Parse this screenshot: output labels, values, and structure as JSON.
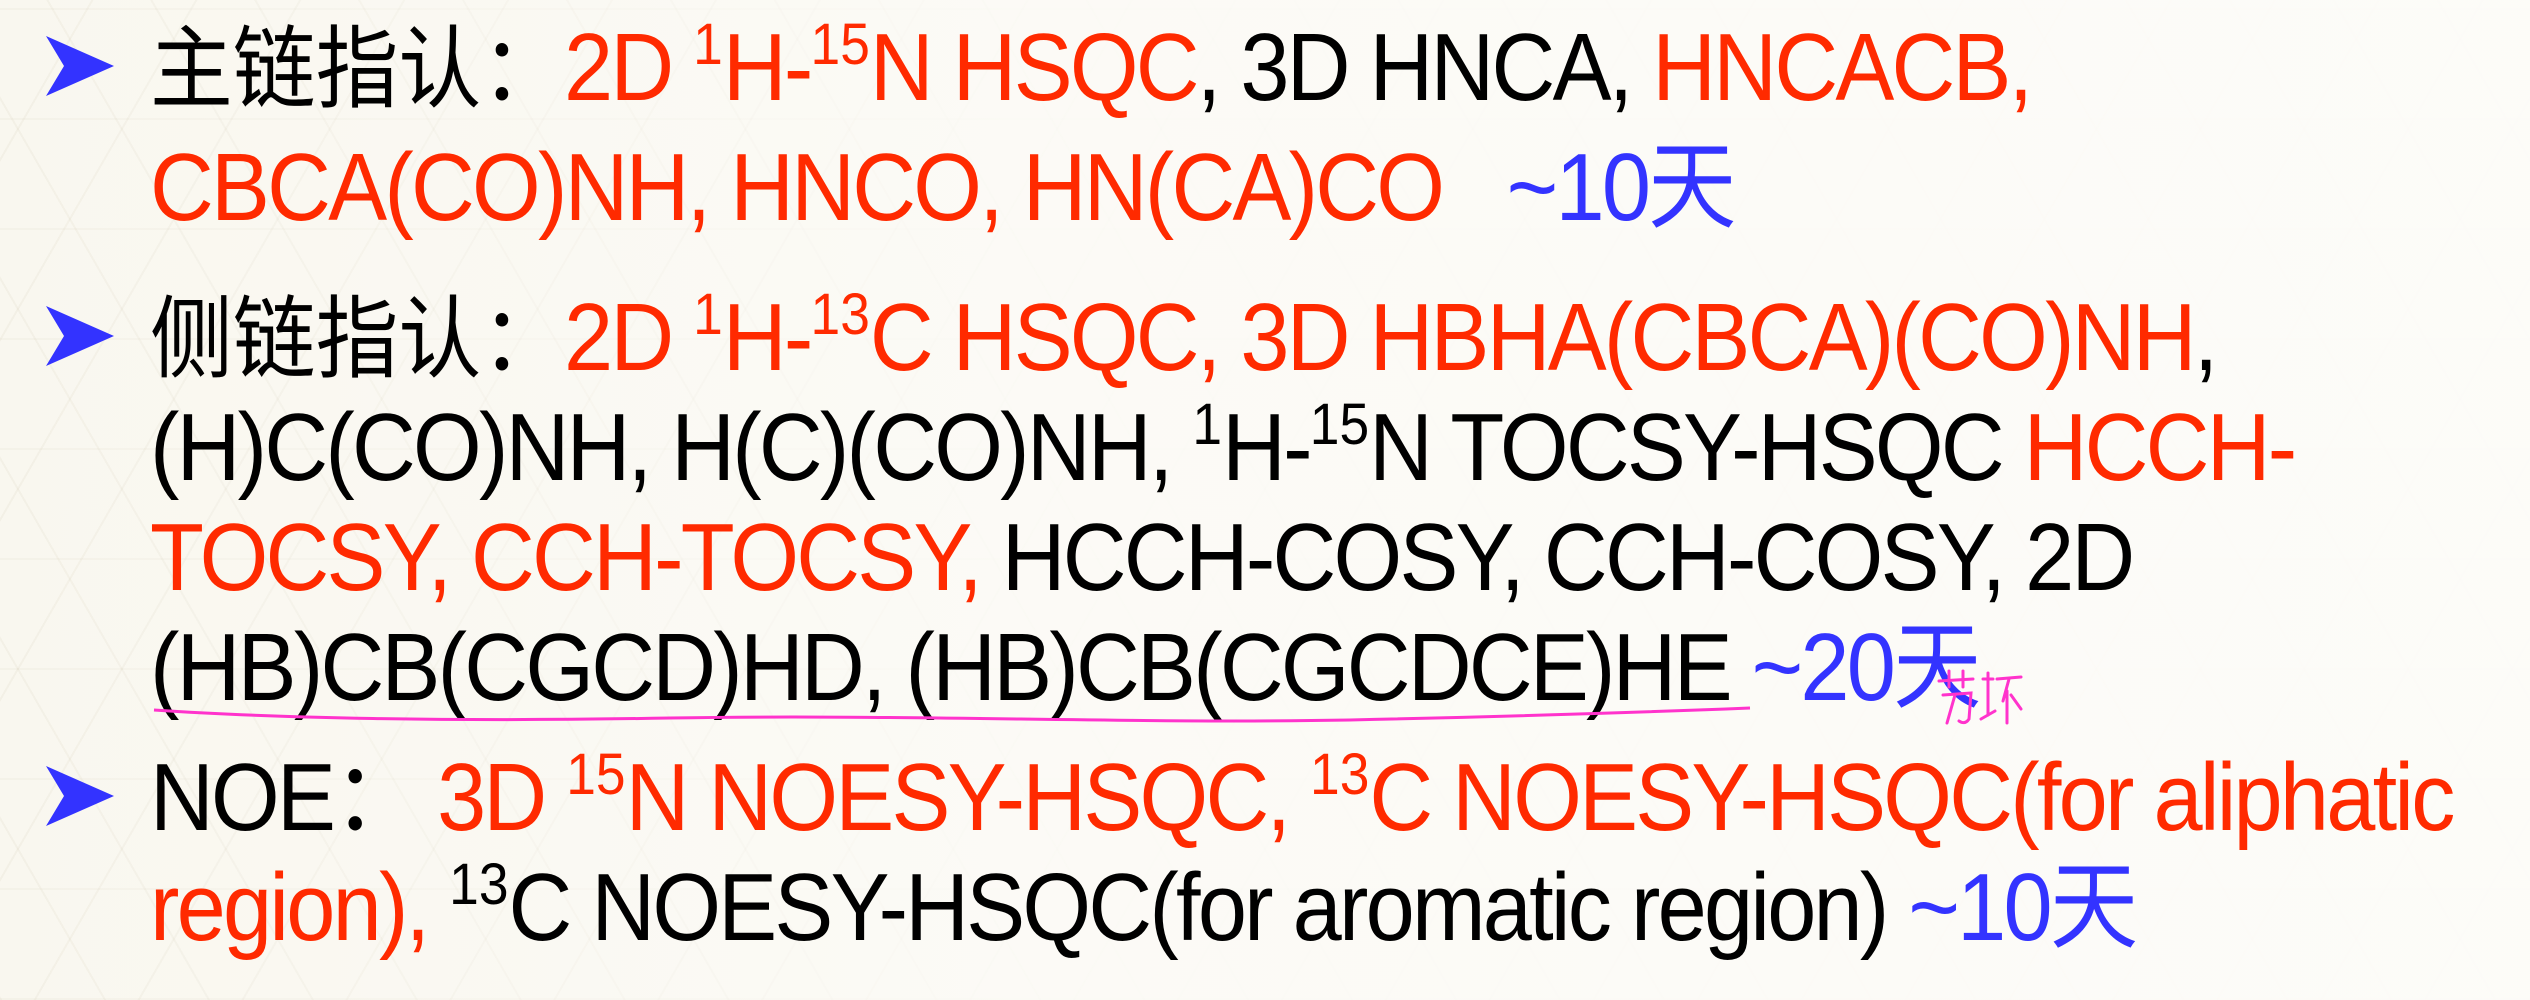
{
  "bullets": [
    {
      "label": "主链指认：",
      "line1": {
        "a": "2D ",
        "a_sup1": "1",
        "a_mid": "H-",
        "a_sup2": "15",
        "a_end": "N HSQC",
        "b": ", 3D HNCA, ",
        "c": "HNCACB,"
      },
      "line2": {
        "a": "CBCA(CO)NH, HNCO, HN(CA)CO",
        "b": "~10天"
      }
    },
    {
      "label": "侧链指认：",
      "line1": {
        "a": "2D ",
        "a_sup1": "1",
        "a_mid": "H-",
        "a_sup2": "13",
        "a_end": "C HSQC, 3D HBHA(CBCA)(CO)NH",
        "b": ","
      },
      "line2": {
        "a": "(H)C(CO)NH, H(C)(CO)NH, ",
        "a_sup1": "1",
        "a_mid": "H-",
        "a_sup2": "15",
        "a_end": "N TOCSY-HSQC ",
        "b": "HCCH-"
      },
      "line3": {
        "a": "TOCSY, CCH-TOCSY,",
        "b": " HCCH-COSY, CCH-COSY, 2D"
      },
      "line4": {
        "a": "(HB)CB(CGCD)HD, (HB)CB(CGCDCE)HE ",
        "b": "~20天",
        "annotation": "芳环"
      }
    },
    {
      "label": "NOE：",
      "line1": {
        "a": "3D ",
        "a_sup1": "15",
        "a_mid": "N NOESY-HSQC, ",
        "a_sup2": "13",
        "a_end": "C NOESY-HSQC(for aliphatic"
      },
      "line2": {
        "a": "region),",
        "b": " ",
        "b_sup": "13",
        "b_end": "C NOESY-HSQC(for aromatic region) ",
        "c": "~10天"
      }
    }
  ],
  "colors": {
    "highlight": "#ff2a00",
    "text": "#000000",
    "duration": "#3333ff",
    "bullet": "#3333ff",
    "annotation": "#ff33cc"
  },
  "icons": {
    "bullet": "arrowhead-bullet-icon"
  }
}
